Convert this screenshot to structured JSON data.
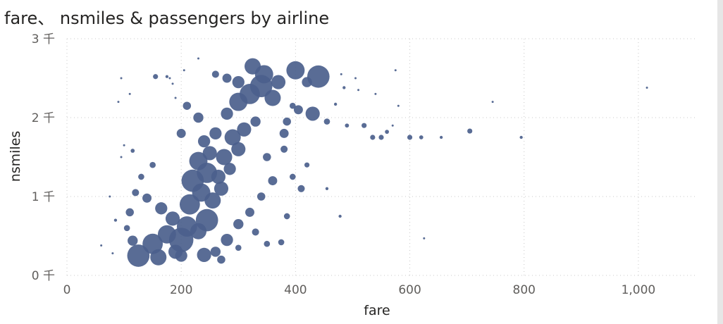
{
  "title": "fare、 nsmiles & passengers by airline",
  "colors": {
    "marker": "#4b5f8c",
    "grid": "#c8c8c8",
    "tick": "#605e5c",
    "title": "#252423"
  },
  "chart_data": {
    "type": "scatter",
    "title": "fare、 nsmiles & passengers by airline",
    "xlabel": "fare",
    "ylabel": "nsmiles",
    "size_field": "passengers",
    "xlim": [
      0,
      1100
    ],
    "ylim": [
      0,
      3000
    ],
    "x_ticks": [
      {
        "value": 0,
        "label": "0"
      },
      {
        "value": 200,
        "label": "200"
      },
      {
        "value": 400,
        "label": "400"
      },
      {
        "value": 600,
        "label": "600"
      },
      {
        "value": 800,
        "label": "800"
      },
      {
        "value": 1000,
        "label": "1,000"
      }
    ],
    "y_ticks": [
      {
        "value": 0,
        "label": "0 千"
      },
      {
        "value": 1000,
        "label": "1 千"
      },
      {
        "value": 2000,
        "label": "2 千"
      },
      {
        "value": 3000,
        "label": "3 千"
      }
    ],
    "grid": true,
    "points": [
      {
        "x": 125,
        "y": 250,
        "size": 22
      },
      {
        "x": 160,
        "y": 230,
        "size": 16
      },
      {
        "x": 190,
        "y": 300,
        "size": 14
      },
      {
        "x": 115,
        "y": 440,
        "size": 10
      },
      {
        "x": 150,
        "y": 400,
        "size": 20
      },
      {
        "x": 175,
        "y": 520,
        "size": 18
      },
      {
        "x": 200,
        "y": 450,
        "size": 24
      },
      {
        "x": 210,
        "y": 620,
        "size": 20
      },
      {
        "x": 230,
        "y": 560,
        "size": 16
      },
      {
        "x": 245,
        "y": 700,
        "size": 22
      },
      {
        "x": 185,
        "y": 720,
        "size": 14
      },
      {
        "x": 165,
        "y": 850,
        "size": 12
      },
      {
        "x": 140,
        "y": 980,
        "size": 9
      },
      {
        "x": 120,
        "y": 1050,
        "size": 7
      },
      {
        "x": 215,
        "y": 900,
        "size": 20
      },
      {
        "x": 235,
        "y": 1050,
        "size": 18
      },
      {
        "x": 255,
        "y": 950,
        "size": 16
      },
      {
        "x": 270,
        "y": 1100,
        "size": 14
      },
      {
        "x": 220,
        "y": 1200,
        "size": 22
      },
      {
        "x": 245,
        "y": 1300,
        "size": 20
      },
      {
        "x": 265,
        "y": 1250,
        "size": 14
      },
      {
        "x": 285,
        "y": 1350,
        "size": 12
      },
      {
        "x": 230,
        "y": 1450,
        "size": 18
      },
      {
        "x": 250,
        "y": 1550,
        "size": 14
      },
      {
        "x": 275,
        "y": 1500,
        "size": 16
      },
      {
        "x": 300,
        "y": 1600,
        "size": 14
      },
      {
        "x": 240,
        "y": 1700,
        "size": 12
      },
      {
        "x": 260,
        "y": 1800,
        "size": 12
      },
      {
        "x": 290,
        "y": 1750,
        "size": 16
      },
      {
        "x": 310,
        "y": 1850,
        "size": 14
      },
      {
        "x": 200,
        "y": 1800,
        "size": 9
      },
      {
        "x": 210,
        "y": 2150,
        "size": 8
      },
      {
        "x": 230,
        "y": 2000,
        "size": 10
      },
      {
        "x": 280,
        "y": 2050,
        "size": 12
      },
      {
        "x": 300,
        "y": 2200,
        "size": 18
      },
      {
        "x": 320,
        "y": 2300,
        "size": 20
      },
      {
        "x": 340,
        "y": 2400,
        "size": 22
      },
      {
        "x": 360,
        "y": 2250,
        "size": 16
      },
      {
        "x": 325,
        "y": 2650,
        "size": 16
      },
      {
        "x": 345,
        "y": 2550,
        "size": 18
      },
      {
        "x": 370,
        "y": 2450,
        "size": 14
      },
      {
        "x": 300,
        "y": 2450,
        "size": 12
      },
      {
        "x": 280,
        "y": 2500,
        "size": 9
      },
      {
        "x": 260,
        "y": 2550,
        "size": 7
      },
      {
        "x": 400,
        "y": 2600,
        "size": 18
      },
      {
        "x": 440,
        "y": 2520,
        "size": 22
      },
      {
        "x": 420,
        "y": 2450,
        "size": 10
      },
      {
        "x": 430,
        "y": 2050,
        "size": 14
      },
      {
        "x": 405,
        "y": 2100,
        "size": 9
      },
      {
        "x": 385,
        "y": 1950,
        "size": 8
      },
      {
        "x": 380,
        "y": 1800,
        "size": 9
      },
      {
        "x": 330,
        "y": 1950,
        "size": 10
      },
      {
        "x": 350,
        "y": 1500,
        "size": 8
      },
      {
        "x": 380,
        "y": 1600,
        "size": 7
      },
      {
        "x": 360,
        "y": 1200,
        "size": 9
      },
      {
        "x": 340,
        "y": 1000,
        "size": 8
      },
      {
        "x": 320,
        "y": 800,
        "size": 9
      },
      {
        "x": 300,
        "y": 650,
        "size": 10
      },
      {
        "x": 280,
        "y": 450,
        "size": 12
      },
      {
        "x": 260,
        "y": 300,
        "size": 10
      },
      {
        "x": 240,
        "y": 260,
        "size": 14
      },
      {
        "x": 300,
        "y": 350,
        "size": 6
      },
      {
        "x": 330,
        "y": 550,
        "size": 7
      },
      {
        "x": 350,
        "y": 400,
        "size": 6
      },
      {
        "x": 375,
        "y": 420,
        "size": 6
      },
      {
        "x": 385,
        "y": 750,
        "size": 6
      },
      {
        "x": 410,
        "y": 1100,
        "size": 7
      },
      {
        "x": 395,
        "y": 1250,
        "size": 6
      },
      {
        "x": 420,
        "y": 1400,
        "size": 5
      },
      {
        "x": 270,
        "y": 200,
        "size": 8
      },
      {
        "x": 200,
        "y": 250,
        "size": 12
      },
      {
        "x": 110,
        "y": 800,
        "size": 8
      },
      {
        "x": 105,
        "y": 600,
        "size": 6
      },
      {
        "x": 130,
        "y": 1250,
        "size": 6
      },
      {
        "x": 150,
        "y": 1400,
        "size": 6
      },
      {
        "x": 115,
        "y": 1580,
        "size": 4
      },
      {
        "x": 100,
        "y": 1650,
        "size": 2
      },
      {
        "x": 95,
        "y": 1500,
        "size": 2
      },
      {
        "x": 85,
        "y": 700,
        "size": 3
      },
      {
        "x": 75,
        "y": 1000,
        "size": 2
      },
      {
        "x": 60,
        "y": 380,
        "size": 2
      },
      {
        "x": 80,
        "y": 280,
        "size": 2
      },
      {
        "x": 90,
        "y": 2200,
        "size": 2
      },
      {
        "x": 95,
        "y": 2500,
        "size": 2
      },
      {
        "x": 110,
        "y": 2300,
        "size": 2
      },
      {
        "x": 155,
        "y": 2520,
        "size": 5
      },
      {
        "x": 175,
        "y": 2520,
        "size": 3
      },
      {
        "x": 180,
        "y": 2500,
        "size": 2
      },
      {
        "x": 185,
        "y": 2430,
        "size": 2
      },
      {
        "x": 190,
        "y": 2250,
        "size": 2
      },
      {
        "x": 205,
        "y": 2600,
        "size": 2
      },
      {
        "x": 230,
        "y": 2750,
        "size": 2
      },
      {
        "x": 395,
        "y": 2150,
        "size": 6
      },
      {
        "x": 455,
        "y": 1950,
        "size": 6
      },
      {
        "x": 470,
        "y": 2170,
        "size": 3
      },
      {
        "x": 480,
        "y": 2550,
        "size": 2
      },
      {
        "x": 485,
        "y": 2380,
        "size": 3
      },
      {
        "x": 490,
        "y": 1900,
        "size": 4
      },
      {
        "x": 505,
        "y": 2500,
        "size": 2
      },
      {
        "x": 510,
        "y": 2350,
        "size": 2
      },
      {
        "x": 520,
        "y": 1900,
        "size": 5
      },
      {
        "x": 535,
        "y": 1750,
        "size": 5
      },
      {
        "x": 550,
        "y": 1750,
        "size": 5
      },
      {
        "x": 560,
        "y": 1820,
        "size": 4
      },
      {
        "x": 570,
        "y": 1900,
        "size": 2
      },
      {
        "x": 575,
        "y": 2600,
        "size": 2
      },
      {
        "x": 580,
        "y": 2150,
        "size": 2
      },
      {
        "x": 600,
        "y": 1750,
        "size": 5
      },
      {
        "x": 620,
        "y": 1750,
        "size": 4
      },
      {
        "x": 655,
        "y": 1750,
        "size": 3
      },
      {
        "x": 705,
        "y": 1830,
        "size": 5
      },
      {
        "x": 745,
        "y": 2200,
        "size": 2
      },
      {
        "x": 795,
        "y": 1750,
        "size": 3
      },
      {
        "x": 1015,
        "y": 2380,
        "size": 2
      },
      {
        "x": 625,
        "y": 470,
        "size": 2
      },
      {
        "x": 478,
        "y": 750,
        "size": 3
      },
      {
        "x": 455,
        "y": 1100,
        "size": 3
      },
      {
        "x": 540,
        "y": 2300,
        "size": 2
      }
    ]
  }
}
